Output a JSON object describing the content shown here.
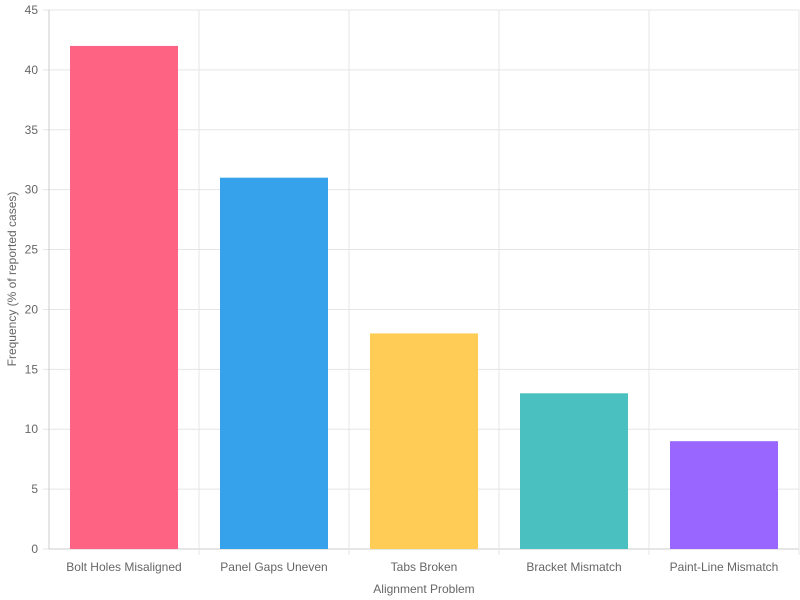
{
  "chart_data": {
    "type": "bar",
    "categories": [
      "Bolt Holes Misaligned",
      "Panel Gaps Uneven",
      "Tabs Broken",
      "Bracket Mismatch",
      "Paint-Line Mismatch"
    ],
    "values": [
      42,
      31,
      18,
      13,
      9
    ],
    "colors": [
      "#ff6384",
      "#36a2eb",
      "#ffcd56",
      "#4bc0c0",
      "#9966ff"
    ],
    "xlabel": "Alignment Problem",
    "ylabel": "Frequency (% of reported cases)",
    "ylim": [
      0,
      45
    ],
    "yticks": [
      0,
      5,
      10,
      15,
      20,
      25,
      30,
      35,
      40,
      45
    ],
    "grid": true,
    "legend": "none"
  }
}
